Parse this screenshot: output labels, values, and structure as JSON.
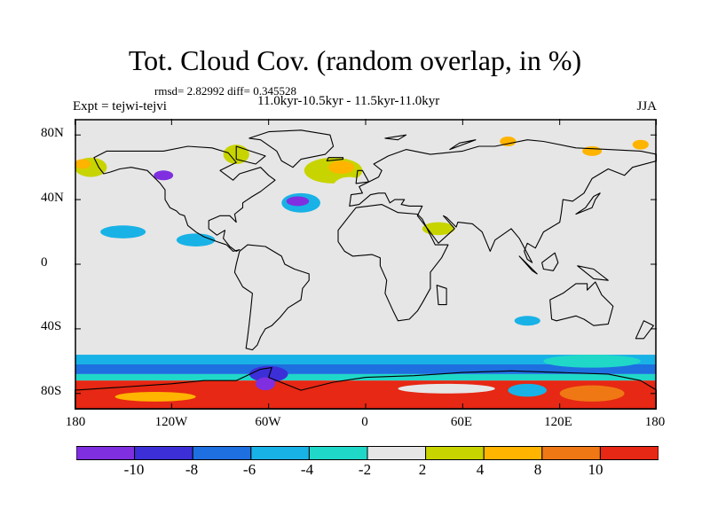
{
  "title": "Tot. Cloud Cov. (random overlap, in %)",
  "stats": "rmsd= 2.82992 diff= 0.345528",
  "experiment": "Expt = tejwi-tejvi",
  "period": "11.0kyr-10.5kyr - 11.5kyr-11.0kyr",
  "season": "JJA",
  "map": {
    "projection": "cylindrical-equidistant",
    "lon_range": [
      -180,
      180
    ],
    "lat_range": [
      -90,
      90
    ],
    "background_color": "#e6e6e6",
    "coastline_color": "#000000"
  },
  "lat_ticks": [
    {
      "label": "80N",
      "value": 80
    },
    {
      "label": "40N",
      "value": 40
    },
    {
      "label": "0",
      "value": 0
    },
    {
      "label": "40S",
      "value": -40
    },
    {
      "label": "80S",
      "value": -80
    }
  ],
  "lon_ticks": [
    {
      "label": "180",
      "value": -180
    },
    {
      "label": "120W",
      "value": -120
    },
    {
      "label": "60W",
      "value": -60
    },
    {
      "label": "0",
      "value": 0
    },
    {
      "label": "60E",
      "value": 60
    },
    {
      "label": "120E",
      "value": 120
    },
    {
      "label": "180",
      "value": 180
    }
  ],
  "colorbar": {
    "colors": [
      "#7f2fe0",
      "#3c2fd8",
      "#1e6fe0",
      "#19b2e6",
      "#20d8c8",
      "#e6e6e6",
      "#c8d400",
      "#ffb400",
      "#f07814",
      "#e62814"
    ],
    "labels": [
      "-10",
      "-8",
      "-6",
      "-4",
      "-2",
      "2",
      "4",
      "8",
      "10"
    ]
  },
  "anomalies": [
    {
      "lon": -20,
      "lat": 58,
      "rx": 18,
      "ry": 8,
      "level": 7
    },
    {
      "lon": -15,
      "lat": 60,
      "rx": 8,
      "ry": 4,
      "level": 8
    },
    {
      "lon": -10,
      "lat": 48,
      "rx": 10,
      "ry": 6,
      "level": 6
    },
    {
      "lon": -40,
      "lat": 38,
      "rx": 12,
      "ry": 6,
      "level": 4
    },
    {
      "lon": -42,
      "lat": 39,
      "rx": 7,
      "ry": 3,
      "level": 1
    },
    {
      "lon": -80,
      "lat": 68,
      "rx": 8,
      "ry": 6,
      "level": 7
    },
    {
      "lon": -100,
      "lat": 72,
      "rx": 8,
      "ry": 4,
      "level": 6
    },
    {
      "lon": -92,
      "lat": 54,
      "rx": 14,
      "ry": 5,
      "level": 6
    },
    {
      "lon": -170,
      "lat": 60,
      "rx": 10,
      "ry": 6,
      "level": 7
    },
    {
      "lon": -175,
      "lat": 62,
      "rx": 5,
      "ry": 3,
      "level": 8
    },
    {
      "lon": -155,
      "lat": 75,
      "rx": 14,
      "ry": 4,
      "level": 6
    },
    {
      "lon": -125,
      "lat": 55,
      "rx": 6,
      "ry": 3,
      "level": 1
    },
    {
      "lon": 170,
      "lat": 72,
      "rx": 10,
      "ry": 5,
      "level": 6
    },
    {
      "lon": 170,
      "lat": 74,
      "rx": 5,
      "ry": 3,
      "level": 8
    },
    {
      "lon": 95,
      "lat": 70,
      "rx": 10,
      "ry": 6,
      "level": 6
    },
    {
      "lon": 88,
      "lat": 76,
      "rx": 5,
      "ry": 3,
      "level": 8
    },
    {
      "lon": 38,
      "lat": 64,
      "rx": 10,
      "ry": 5,
      "level": 6
    },
    {
      "lon": 140,
      "lat": 70,
      "rx": 6,
      "ry": 3,
      "level": 8
    },
    {
      "lon": 45,
      "lat": 22,
      "rx": 10,
      "ry": 4,
      "level": 7
    },
    {
      "lon": -150,
      "lat": 20,
      "rx": 14,
      "ry": 4,
      "level": 4
    },
    {
      "lon": -105,
      "lat": 15,
      "rx": 12,
      "ry": 4,
      "level": 4
    },
    {
      "lon": -165,
      "lat": 5,
      "rx": 12,
      "ry": 3,
      "level": 6
    },
    {
      "lon": -165,
      "lat": -3,
      "rx": 12,
      "ry": 3,
      "level": 6
    },
    {
      "lon": -5,
      "lat": 2,
      "rx": 10,
      "ry": 5,
      "level": 6
    },
    {
      "lon": 38,
      "lat": -3,
      "rx": 8,
      "ry": 4,
      "level": 6
    },
    {
      "lon": 70,
      "lat": -3,
      "rx": 16,
      "ry": 8,
      "level": 6
    },
    {
      "lon": 150,
      "lat": 12,
      "rx": 15,
      "ry": 5,
      "level": 6
    },
    {
      "lon": -30,
      "lat": -30,
      "rx": 10,
      "ry": 6,
      "level": 6
    },
    {
      "lon": 90,
      "lat": -25,
      "rx": 14,
      "ry": 4,
      "level": 6
    },
    {
      "lon": 100,
      "lat": -35,
      "rx": 8,
      "ry": 3,
      "level": 4
    },
    {
      "lon": 140,
      "lat": -60,
      "rx": 30,
      "ry": 4,
      "level": 5
    }
  ],
  "southern_bands": [
    {
      "lat_top": -56,
      "lat_bottom": -62,
      "level": 4
    },
    {
      "lat_top": -62,
      "lat_bottom": -68,
      "level": 3
    },
    {
      "lat_top": -68,
      "lat_bottom": -72,
      "level": 5
    },
    {
      "lat_top": -72,
      "lat_bottom": -90,
      "level": 10
    }
  ],
  "southern_patches": [
    {
      "lon": -60,
      "lat": -68,
      "rx": 12,
      "ry": 5,
      "level": 2
    },
    {
      "lon": -62,
      "lat": -74,
      "rx": 6,
      "ry": 4,
      "level": 1
    },
    {
      "lon": 50,
      "lat": -77,
      "rx": 30,
      "ry": 3,
      "level": 6
    },
    {
      "lon": 100,
      "lat": -78,
      "rx": 12,
      "ry": 4,
      "level": 4
    },
    {
      "lon": 140,
      "lat": -80,
      "rx": 20,
      "ry": 5,
      "level": 9
    },
    {
      "lon": -130,
      "lat": -82,
      "rx": 25,
      "ry": 3,
      "level": 8
    }
  ],
  "continents": [
    {
      "name": "North America",
      "lonlat": [
        [
          -168,
          66
        ],
        [
          -160,
          70
        ],
        [
          -140,
          70
        ],
        [
          -125,
          70
        ],
        [
          -110,
          73
        ],
        [
          -95,
          72
        ],
        [
          -85,
          69
        ],
        [
          -80,
          63
        ],
        [
          -90,
          58
        ],
        [
          -82,
          52
        ],
        [
          -78,
          56
        ],
        [
          -65,
          60
        ],
        [
          -60,
          55
        ],
        [
          -56,
          52
        ],
        [
          -65,
          45
        ],
        [
          -70,
          42
        ],
        [
          -76,
          38
        ],
        [
          -76,
          35
        ],
        [
          -81,
          31
        ],
        [
          -80,
          26
        ],
        [
          -82,
          28
        ],
        [
          -84,
          30
        ],
        [
          -90,
          30
        ],
        [
          -97,
          27
        ],
        [
          -97,
          22
        ],
        [
          -92,
          18
        ],
        [
          -87,
          21
        ],
        [
          -88,
          16
        ],
        [
          -84,
          11
        ],
        [
          -80,
          8
        ],
        [
          -78,
          9
        ],
        [
          -82,
          8
        ],
        [
          -86,
          12
        ],
        [
          -92,
          14
        ],
        [
          -100,
          17
        ],
        [
          -105,
          20
        ],
        [
          -110,
          24
        ],
        [
          -112,
          30
        ],
        [
          -115,
          31
        ],
        [
          -117,
          33
        ],
        [
          -121,
          35
        ],
        [
          -124,
          40
        ],
        [
          -124,
          46
        ],
        [
          -127,
          50
        ],
        [
          -135,
          58
        ],
        [
          -145,
          60
        ],
        [
          -152,
          59
        ],
        [
          -158,
          57
        ],
        [
          -162,
          56
        ],
        [
          -165,
          60
        ],
        [
          -168,
          66
        ]
      ]
    },
    {
      "name": "Greenland",
      "lonlat": [
        [
          -72,
          78
        ],
        [
          -60,
          82
        ],
        [
          -40,
          83
        ],
        [
          -22,
          80
        ],
        [
          -20,
          73
        ],
        [
          -25,
          68
        ],
        [
          -40,
          65
        ],
        [
          -45,
          60
        ],
        [
          -52,
          64
        ],
        [
          -55,
          70
        ],
        [
          -65,
          77
        ],
        [
          -72,
          78
        ]
      ]
    },
    {
      "name": "South America",
      "lonlat": [
        [
          -78,
          8
        ],
        [
          -73,
          12
        ],
        [
          -62,
          11
        ],
        [
          -52,
          5
        ],
        [
          -50,
          0
        ],
        [
          -44,
          -3
        ],
        [
          -35,
          -6
        ],
        [
          -35,
          -10
        ],
        [
          -39,
          -15
        ],
        [
          -40,
          -22
        ],
        [
          -48,
          -27
        ],
        [
          -53,
          -33
        ],
        [
          -58,
          -38
        ],
        [
          -62,
          -40
        ],
        [
          -65,
          -45
        ],
        [
          -67,
          -50
        ],
        [
          -70,
          -53
        ],
        [
          -74,
          -52
        ],
        [
          -73,
          -45
        ],
        [
          -72,
          -37
        ],
        [
          -71,
          -28
        ],
        [
          -70,
          -18
        ],
        [
          -76,
          -14
        ],
        [
          -81,
          -5
        ],
        [
          -80,
          0
        ],
        [
          -78,
          8
        ]
      ]
    },
    {
      "name": "Africa",
      "lonlat": [
        [
          -17,
          21
        ],
        [
          -10,
          30
        ],
        [
          -6,
          35
        ],
        [
          10,
          37
        ],
        [
          20,
          32
        ],
        [
          32,
          31
        ],
        [
          35,
          28
        ],
        [
          43,
          12
        ],
        [
          51,
          12
        ],
        [
          47,
          4
        ],
        [
          40,
          -5
        ],
        [
          40,
          -15
        ],
        [
          35,
          -24
        ],
        [
          32,
          -29
        ],
        [
          27,
          -34
        ],
        [
          20,
          -35
        ],
        [
          17,
          -29
        ],
        [
          12,
          -18
        ],
        [
          13,
          -10
        ],
        [
          9,
          -1
        ],
        [
          9,
          4
        ],
        [
          4,
          6
        ],
        [
          -8,
          5
        ],
        [
          -13,
          8
        ],
        [
          -17,
          14
        ],
        [
          -17,
          21
        ]
      ]
    },
    {
      "name": "Eurasia",
      "lonlat": [
        [
          -10,
          36
        ],
        [
          -9,
          43
        ],
        [
          -2,
          44
        ],
        [
          -4,
          48
        ],
        [
          2,
          51
        ],
        [
          8,
          54
        ],
        [
          10,
          58
        ],
        [
          5,
          62
        ],
        [
          14,
          67
        ],
        [
          25,
          71
        ],
        [
          40,
          68
        ],
        [
          60,
          70
        ],
        [
          70,
          73
        ],
        [
          80,
          73
        ],
        [
          100,
          77
        ],
        [
          110,
          76
        ],
        [
          130,
          72
        ],
        [
          150,
          71
        ],
        [
          170,
          70
        ],
        [
          180,
          68
        ],
        [
          180,
          64
        ],
        [
          165,
          60
        ],
        [
          160,
          55
        ],
        [
          150,
          59
        ],
        [
          140,
          53
        ],
        [
          135,
          44
        ],
        [
          128,
          39
        ],
        [
          122,
          40
        ],
        [
          121,
          32
        ],
        [
          120,
          26
        ],
        [
          110,
          20
        ],
        [
          105,
          10
        ],
        [
          100,
          13
        ],
        [
          98,
          8
        ],
        [
          100,
          3
        ],
        [
          103,
          1
        ],
        [
          95,
          16
        ],
        [
          90,
          22
        ],
        [
          80,
          15
        ],
        [
          77,
          8
        ],
        [
          72,
          20
        ],
        [
          66,
          25
        ],
        [
          57,
          26
        ],
        [
          56,
          23
        ],
        [
          50,
          29
        ],
        [
          48,
          30
        ],
        [
          55,
          22
        ],
        [
          45,
          13
        ],
        [
          39,
          21
        ],
        [
          32,
          30
        ],
        [
          35,
          36
        ],
        [
          27,
          36
        ],
        [
          22,
          37
        ],
        [
          24,
          40
        ],
        [
          18,
          40
        ],
        [
          15,
          38
        ],
        [
          12,
          44
        ],
        [
          8,
          44
        ],
        [
          3,
          43
        ],
        [
          -4,
          37
        ],
        [
          -10,
          36
        ]
      ]
    },
    {
      "name": "Australia",
      "lonlat": [
        [
          114,
          -22
        ],
        [
          122,
          -18
        ],
        [
          130,
          -12
        ],
        [
          137,
          -12
        ],
        [
          137,
          -16
        ],
        [
          142,
          -11
        ],
        [
          146,
          -19
        ],
        [
          153,
          -26
        ],
        [
          150,
          -37
        ],
        [
          141,
          -38
        ],
        [
          135,
          -34
        ],
        [
          130,
          -32
        ],
        [
          118,
          -35
        ],
        [
          115,
          -34
        ],
        [
          114,
          -22
        ]
      ]
    },
    {
      "name": "Antarctica",
      "lonlat": [
        [
          -180,
          -78
        ],
        [
          -150,
          -76
        ],
        [
          -120,
          -74
        ],
        [
          -100,
          -72
        ],
        [
          -80,
          -72
        ],
        [
          -65,
          -65
        ],
        [
          -58,
          -64
        ],
        [
          -60,
          -70
        ],
        [
          -40,
          -78
        ],
        [
          -20,
          -73
        ],
        [
          0,
          -70
        ],
        [
          30,
          -69
        ],
        [
          60,
          -67
        ],
        [
          90,
          -66
        ],
        [
          120,
          -67
        ],
        [
          150,
          -68
        ],
        [
          170,
          -72
        ],
        [
          180,
          -78
        ],
        [
          180,
          -90
        ],
        [
          -180,
          -90
        ],
        [
          -180,
          -78
        ]
      ]
    },
    {
      "name": "Madagascar",
      "lonlat": [
        [
          44,
          -13
        ],
        [
          50,
          -15
        ],
        [
          50,
          -25
        ],
        [
          45,
          -25
        ],
        [
          44,
          -13
        ]
      ]
    },
    {
      "name": "British Isles",
      "lonlat": [
        [
          -6,
          50
        ],
        [
          2,
          51
        ],
        [
          -2,
          58
        ],
        [
          -5,
          58
        ],
        [
          -6,
          50
        ]
      ]
    },
    {
      "name": "Iceland",
      "lonlat": [
        [
          -24,
          64
        ],
        [
          -14,
          65
        ],
        [
          -14,
          66
        ],
        [
          -23,
          66
        ],
        [
          -24,
          64
        ]
      ]
    },
    {
      "name": "Japan",
      "lonlat": [
        [
          130,
          31
        ],
        [
          140,
          35
        ],
        [
          142,
          40
        ],
        [
          145,
          44
        ],
        [
          141,
          42
        ],
        [
          136,
          35
        ],
        [
          130,
          31
        ]
      ]
    },
    {
      "name": "New Zealand",
      "lonlat": [
        [
          172,
          -35
        ],
        [
          178,
          -38
        ],
        [
          172,
          -46
        ],
        [
          167,
          -46
        ],
        [
          172,
          -35
        ]
      ]
    },
    {
      "name": "Borneo",
      "lonlat": [
        [
          109,
          1
        ],
        [
          117,
          7
        ],
        [
          119,
          1
        ],
        [
          116,
          -4
        ],
        [
          110,
          -3
        ],
        [
          109,
          1
        ]
      ]
    },
    {
      "name": "Sumatra",
      "lonlat": [
        [
          95,
          5
        ],
        [
          106,
          -6
        ],
        [
          103,
          -4
        ],
        [
          95,
          5
        ]
      ]
    },
    {
      "name": "New Guinea",
      "lonlat": [
        [
          131,
          -1
        ],
        [
          141,
          -3
        ],
        [
          150,
          -10
        ],
        [
          141,
          -9
        ],
        [
          131,
          -1
        ]
      ]
    },
    {
      "name": "Baffin Island",
      "lonlat": [
        [
          -80,
          73
        ],
        [
          -62,
          67
        ],
        [
          -68,
          62
        ],
        [
          -80,
          65
        ],
        [
          -80,
          73
        ]
      ]
    },
    {
      "name": "Svalbard",
      "lonlat": [
        [
          12,
          78
        ],
        [
          25,
          80
        ],
        [
          20,
          77
        ],
        [
          12,
          78
        ]
      ]
    },
    {
      "name": "Novaya Zemlya",
      "lonlat": [
        [
          52,
          71
        ],
        [
          68,
          77
        ],
        [
          58,
          75
        ],
        [
          52,
          71
        ]
      ]
    }
  ]
}
